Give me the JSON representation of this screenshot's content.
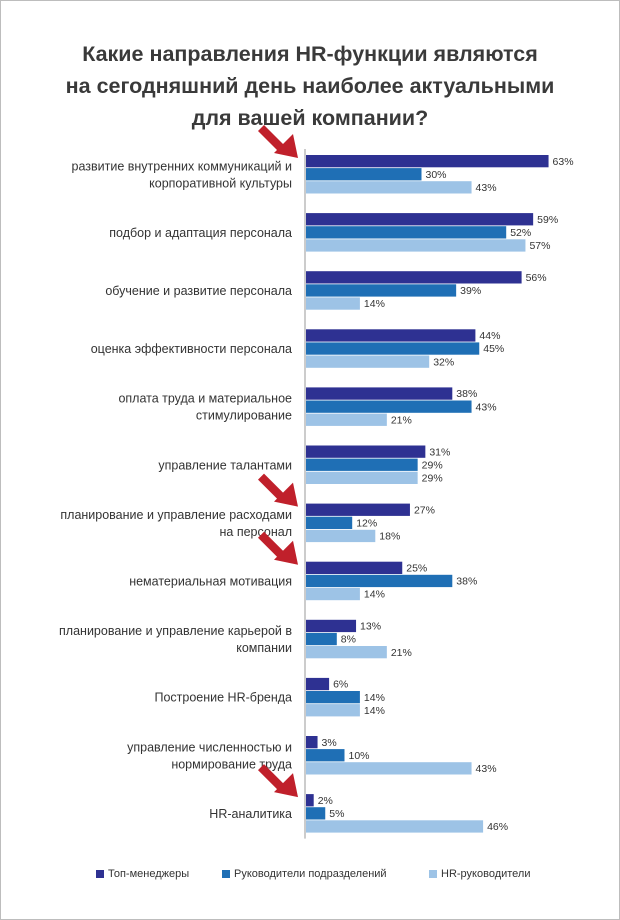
{
  "title_lines": [
    "Какие направления HR-функции являются",
    "на сегодняшний день наиболее актуальными",
    "для вашей компании?"
  ],
  "colors": {
    "top_managers": "#2e3192",
    "dept_heads": "#1f6fb5",
    "hr_heads": "#9dc3e6",
    "arrow": "#c0202b",
    "axis": "#9a9a9a",
    "label_text": "#333333"
  },
  "chart_data": {
    "type": "bar",
    "orientation": "horizontal",
    "categories": [
      [
        "развитие внутренних коммуникаций и",
        "корпоративной культуры"
      ],
      [
        "подбор и адаптация персонала"
      ],
      [
        "обучение и развитие персонала"
      ],
      [
        "оценка эффективности персонала"
      ],
      [
        "оплата труда и материальное",
        "стимулирование"
      ],
      [
        "управление талантами"
      ],
      [
        "планирование и управление расходами",
        "на персонал"
      ],
      [
        "нематериальная мотивация"
      ],
      [
        "планирование и управление карьерой в",
        "компании"
      ],
      [
        "Построение HR-бренда"
      ],
      [
        "управление численностью и",
        "нормирование труда"
      ],
      [
        "HR-аналитика"
      ]
    ],
    "series": [
      {
        "name": "Топ-менеджеры",
        "color_key": "top_managers",
        "values": [
          63,
          59,
          56,
          44,
          38,
          31,
          27,
          25,
          13,
          6,
          3,
          2
        ]
      },
      {
        "name": "Руководители подразделений",
        "color_key": "dept_heads",
        "values": [
          30,
          52,
          39,
          45,
          43,
          29,
          12,
          38,
          8,
          14,
          10,
          5
        ]
      },
      {
        "name": "HR-руководители",
        "color_key": "hr_heads",
        "values": [
          43,
          57,
          14,
          32,
          21,
          29,
          18,
          14,
          21,
          14,
          43,
          46
        ]
      }
    ],
    "value_suffix": "%",
    "highlighted_categories": [
      0,
      6,
      7,
      11
    ],
    "xlim": [
      0,
      70
    ],
    "legend_position": "bottom"
  }
}
